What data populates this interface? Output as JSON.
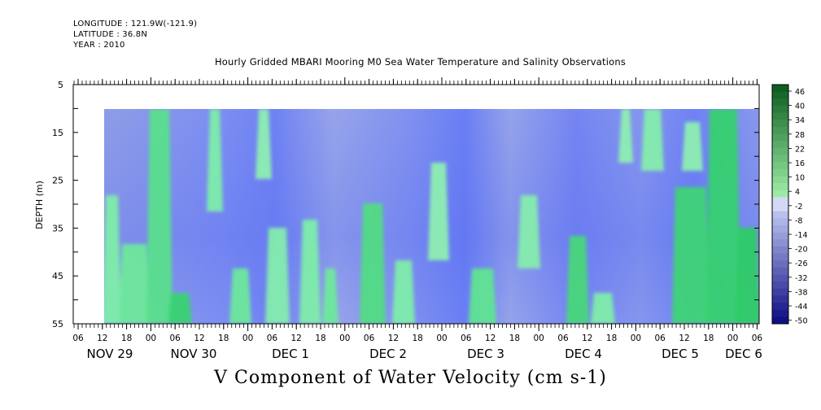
{
  "header": {
    "longitude": "LONGITUDE : 121.9W(-121.9)",
    "latitude": "LATITUDE : 36.8N",
    "year": "YEAR : 2010"
  },
  "chart_data": {
    "type": "heatmap",
    "title": "Hourly Gridded MBARI Mooring M0 Sea Water Temperature and Salinity Observations",
    "xlabel": "V Component of Water Velocity (cm s-1)",
    "ylabel": "DEPTH (m)",
    "ylim": [
      55,
      5
    ],
    "y_ticks": [
      5,
      15,
      25,
      35,
      45,
      55
    ],
    "data_depth_range": [
      10,
      55
    ],
    "x_hour_tick_labels": [
      "06",
      "12",
      "18",
      "00",
      "06",
      "12",
      "18",
      "00",
      "06",
      "12",
      "18",
      "00",
      "06",
      "12",
      "18",
      "00",
      "06",
      "12",
      "18",
      "00",
      "06",
      "12",
      "18",
      "00",
      "06",
      "12",
      "18",
      "00",
      "06"
    ],
    "x_day_labels": [
      "NOV 29",
      "NOV 30",
      "DEC  1",
      "DEC  2",
      "DEC  3",
      "DEC  4",
      "DEC  5",
      "DEC  6"
    ],
    "colorbar": {
      "labels": [
        "46",
        "40",
        "34",
        "28",
        "22",
        "16",
        "10",
        "4",
        "-2",
        "-8",
        "-14",
        "-20",
        "-26",
        "-32",
        "-38",
        "-44",
        "-50"
      ],
      "range": [
        -50,
        52
      ]
    },
    "grid": false
  }
}
